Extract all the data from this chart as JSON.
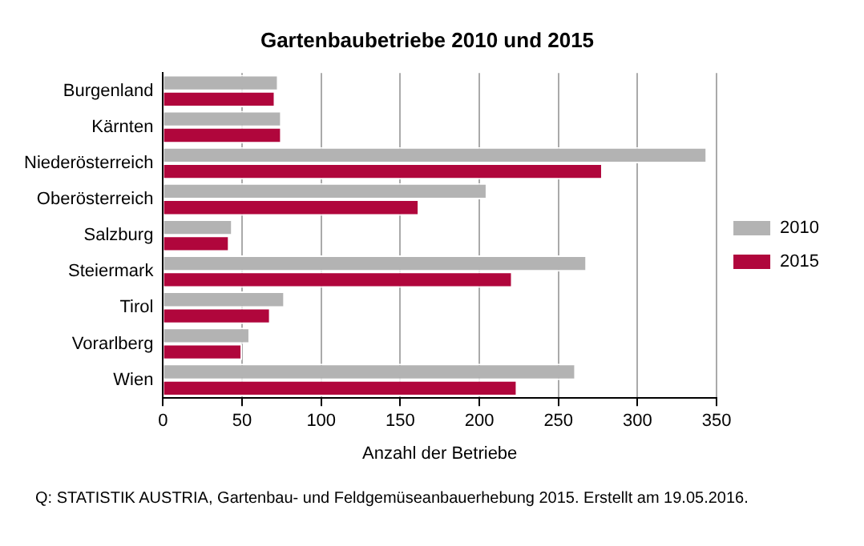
{
  "chart_data": {
    "type": "bar",
    "orientation": "horizontal",
    "title": "Gartenbaubetriebe 2010 und 2015",
    "xlabel": "Anzahl der Betriebe",
    "categories": [
      "Burgenland",
      "Kärnten",
      "Niederösterreich",
      "Oberösterreich",
      "Salzburg",
      "Steiermark",
      "Tirol",
      "Vorarlberg",
      "Wien"
    ],
    "series": [
      {
        "name": "2010",
        "color": "#b3b3b3",
        "values": [
          73,
          75,
          344,
          205,
          44,
          268,
          77,
          55,
          261
        ]
      },
      {
        "name": "2015",
        "color": "#b0063c",
        "values": [
          71,
          75,
          278,
          162,
          42,
          221,
          68,
          50,
          224
        ]
      }
    ],
    "xlim": [
      0,
      350
    ],
    "xticks": [
      0,
      50,
      100,
      150,
      200,
      250,
      300,
      350
    ],
    "grid": "x",
    "legend": "right",
    "annotations": [
      "Q: STATISTIK AUSTRIA, Gartenbau- und Feldgemüseanbauerhebung 2015. Erstellt am 19.05.2016."
    ]
  }
}
